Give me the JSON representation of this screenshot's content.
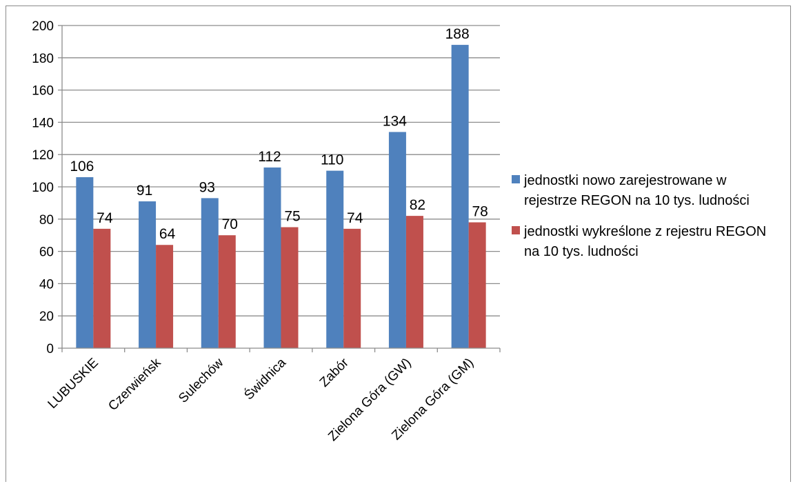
{
  "chart_data": {
    "type": "bar",
    "categories": [
      "LUBUSKIE",
      "Czerwieńsk",
      "Sulechów",
      "Świdnica",
      "Zabór",
      "Zielona Góra (GW)",
      "Zielona Góra (GM)"
    ],
    "series": [
      {
        "name": "jednostki nowo zarejestrowane w rejestrze REGON na 10 tys. ludności",
        "values": [
          106,
          91,
          93,
          112,
          110,
          134,
          188
        ],
        "color": "#4f81bd"
      },
      {
        "name": "jednostki wykreślone z rejestru REGON na 10 tys. ludności",
        "values": [
          74,
          64,
          70,
          75,
          74,
          82,
          78
        ],
        "color": "#c0504d"
      }
    ],
    "ylim": [
      0,
      200
    ],
    "yticks": [
      0,
      20,
      40,
      60,
      80,
      100,
      120,
      140,
      160,
      180,
      200
    ],
    "grid": true,
    "legend": "right",
    "data_labels": true
  }
}
